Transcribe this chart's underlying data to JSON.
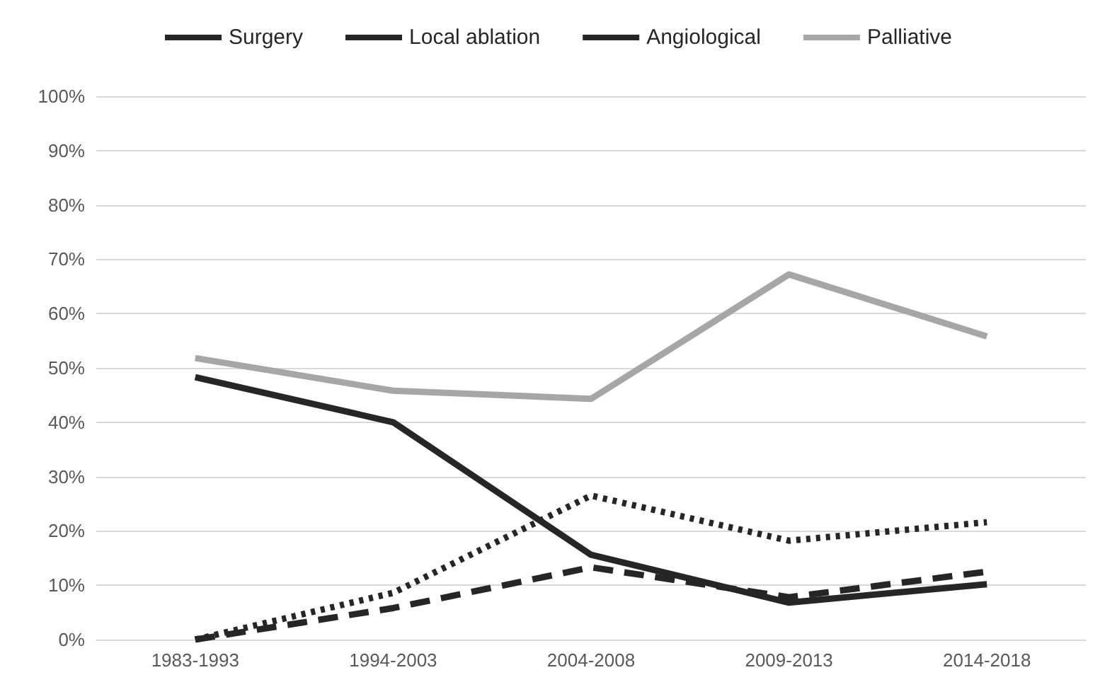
{
  "chart_data": {
    "type": "line",
    "categories": [
      "1983-1993",
      "1994-2003",
      "2004-2008",
      "2009-2013",
      "2014-2018"
    ],
    "series": [
      {
        "name": "Surgery",
        "color": "#262626",
        "line_style": "solid",
        "values": [
          48.3,
          40.0,
          15.6,
          6.8,
          10.2
        ]
      },
      {
        "name": "Local ablation",
        "color": "#262626",
        "line_style": "dashed",
        "values": [
          0,
          5.8,
          13.3,
          7.8,
          12.5
        ]
      },
      {
        "name": "Angiological",
        "color": "#262626",
        "line_style": "dotted",
        "values": [
          0,
          8.6,
          26.5,
          18.2,
          21.6
        ]
      },
      {
        "name": "Palliative",
        "color": "#a6a6a6",
        "line_style": "solid",
        "values": [
          51.8,
          45.8,
          44.3,
          67.2,
          55.8
        ]
      }
    ],
    "ylim": [
      0,
      100
    ],
    "yticks": [
      {
        "value": 0,
        "label": "0%"
      },
      {
        "value": 10,
        "label": "10%"
      },
      {
        "value": 20,
        "label": "20%"
      },
      {
        "value": 30,
        "label": "30%"
      },
      {
        "value": 40,
        "label": "40%"
      },
      {
        "value": 50,
        "label": "50%"
      },
      {
        "value": 60,
        "label": "60%"
      },
      {
        "value": 70,
        "label": "70%"
      },
      {
        "value": 80,
        "label": "80%"
      },
      {
        "value": 90,
        "label": "90%"
      },
      {
        "value": 100,
        "label": "100%"
      }
    ],
    "grid": "y",
    "legend": "top",
    "marker": "none"
  }
}
